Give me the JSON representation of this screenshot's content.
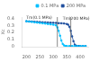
{
  "chart_data": {
    "type": "line",
    "ylabel": "Xc",
    "series": [
      {
        "name": "0.1 MPa",
        "color": "#00bfff",
        "marker": "square",
        "x": [
          200,
          210,
          220,
          230,
          240,
          250,
          260,
          270,
          280,
          290,
          300,
          310,
          315,
          320,
          325,
          330,
          335,
          340,
          345,
          350,
          360,
          370,
          380,
          390,
          400,
          410,
          420
        ],
        "values": [
          0.36,
          0.355,
          0.35,
          0.345,
          0.34,
          0.335,
          0.33,
          0.325,
          0.32,
          0.315,
          0.31,
          0.3,
          0.27,
          0.22,
          0.15,
          0.08,
          0.03,
          0.01,
          0.0,
          0.0,
          0.0,
          0.0,
          0.0,
          0.0,
          0.0,
          0.0,
          0.0
        ]
      },
      {
        "name": "200 MPa",
        "color": "#1e4e9d",
        "marker": "square",
        "x": [
          200,
          210,
          220,
          230,
          240,
          250,
          260,
          270,
          280,
          290,
          300,
          310,
          320,
          330,
          340,
          350,
          355,
          360,
          365,
          370,
          375,
          380,
          385,
          390,
          395,
          400,
          410,
          420
        ],
        "values": [
          0.36,
          0.357,
          0.355,
          0.352,
          0.35,
          0.348,
          0.345,
          0.343,
          0.341,
          0.339,
          0.337,
          0.335,
          0.332,
          0.33,
          0.327,
          0.32,
          0.31,
          0.28,
          0.22,
          0.14,
          0.07,
          0.02,
          0.005,
          0.0,
          0.0,
          0.0,
          0.0,
          0.0
        ]
      }
    ],
    "vlines": [
      {
        "x": 315,
        "color": "#555555"
      },
      {
        "x": 365,
        "color": "#555555"
      }
    ],
    "annotations": [
      {
        "text": "Tm(0.1 MPa)",
        "x": 295,
        "y": 0.385
      },
      {
        "text": "Tm(200 MPa)",
        "x": 335,
        "y": 0.37
      }
    ],
    "xlim": [
      185,
      430
    ],
    "ylim": [
      -0.01,
      0.42
    ],
    "xticks": [
      200,
      250,
      300,
      350,
      400
    ],
    "yticks": [
      0.0,
      0.1,
      0.2,
      0.3,
      0.4
    ],
    "grid": false,
    "legend": "upper right"
  }
}
